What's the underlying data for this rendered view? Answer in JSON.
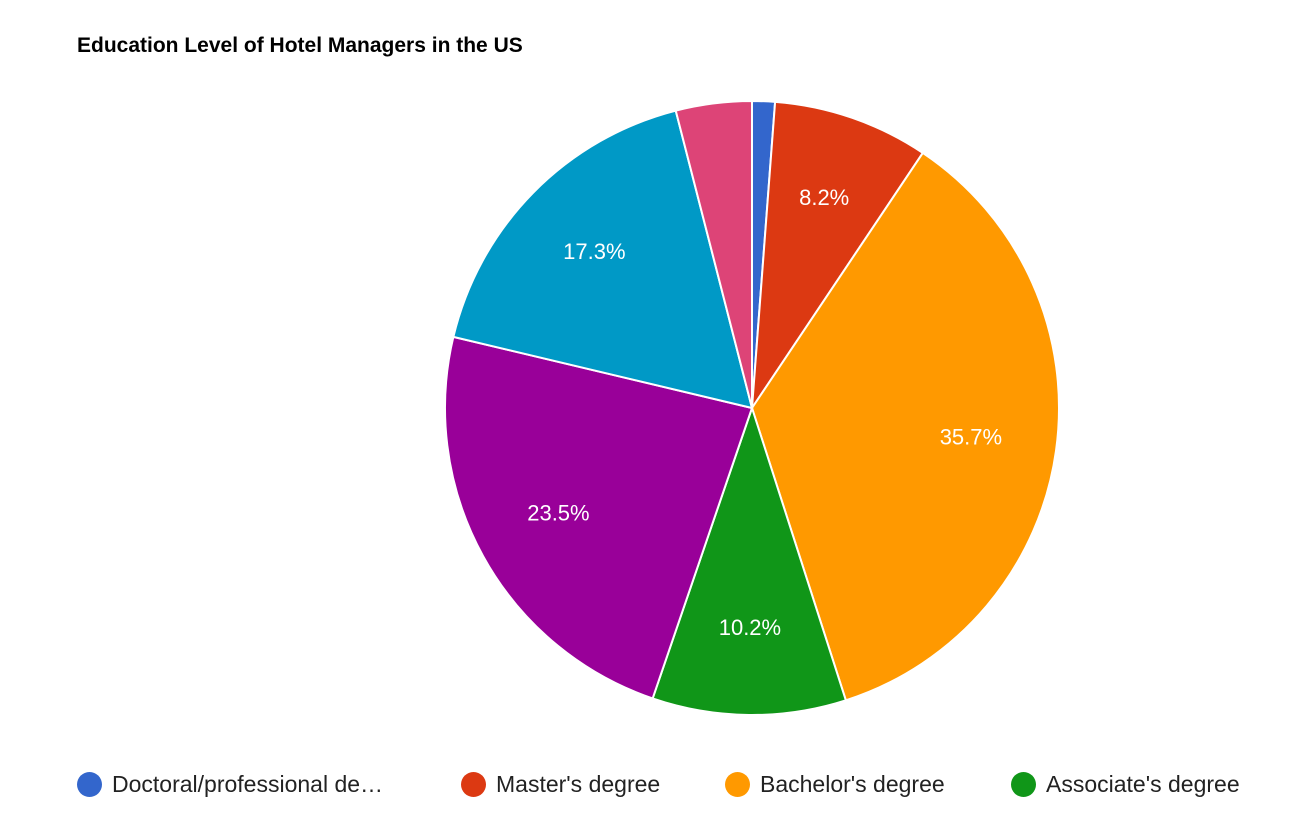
{
  "chart_data": {
    "type": "pie",
    "title": "Education Level of Hotel Managers in the US",
    "slices": [
      {
        "label": "Doctoral/professional de…",
        "value": 1.2,
        "color": "#3366cc",
        "value_label": ""
      },
      {
        "label": "Master's degree",
        "value": 8.2,
        "color": "#dc3912",
        "value_label": "8.2%"
      },
      {
        "label": "Bachelor's degree",
        "value": 35.7,
        "color": "#ff9900",
        "value_label": "35.7%"
      },
      {
        "label": "Associate's degree",
        "value": 10.2,
        "color": "#109618",
        "value_label": "10.2%"
      },
      {
        "label": "",
        "value": 23.5,
        "color": "#990099",
        "value_label": "23.5%"
      },
      {
        "label": "",
        "value": 17.3,
        "color": "#0099c6",
        "value_label": "17.3%"
      },
      {
        "label": "",
        "value": 4.0,
        "color": "#dd4477",
        "value_label": ""
      }
    ],
    "legend_position": "bottom"
  }
}
